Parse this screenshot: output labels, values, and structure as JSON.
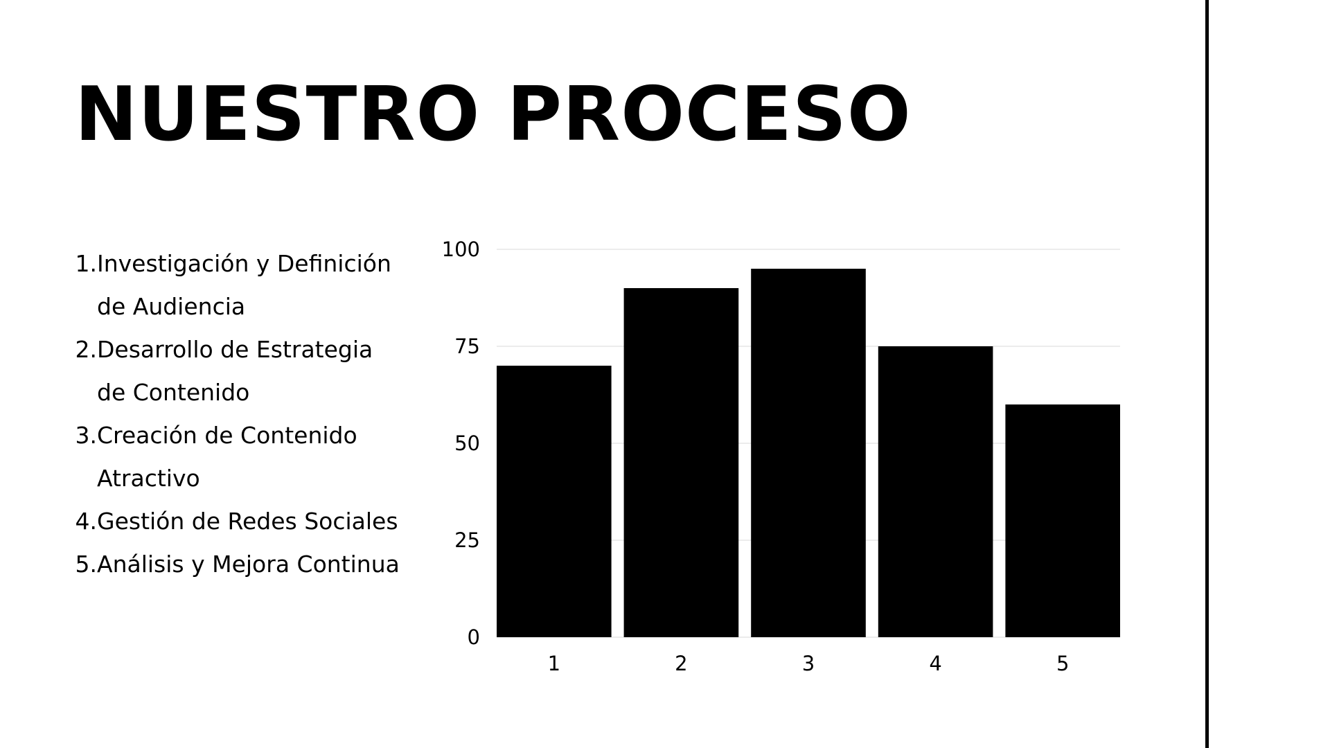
{
  "slide": {
    "title": "NUESTRO PROCESO",
    "steps": [
      {
        "num": "1.",
        "text": "Investigación y Definición de Audiencia"
      },
      {
        "num": "2.",
        "text": "Desarrollo de Estrategia de Contenido"
      },
      {
        "num": "3.",
        "text": "Creación de Contenido Atractivo"
      },
      {
        "num": "4.",
        "text": "Gestión de Redes Sociales"
      },
      {
        "num": "5.",
        "text": "Análisis y Mejora Continua"
      }
    ]
  },
  "colors": {
    "bar": "#000000",
    "gridline": "#e6e6e6",
    "text": "#000000",
    "background": "#ffffff"
  },
  "chart_data": {
    "type": "bar",
    "categories": [
      "1",
      "2",
      "3",
      "4",
      "5"
    ],
    "values": [
      70,
      90,
      95,
      75,
      60
    ],
    "ylim": [
      0,
      100
    ],
    "yticks": [
      0,
      25,
      50,
      75,
      100
    ],
    "grid": true,
    "title": "",
    "xlabel": "",
    "ylabel": ""
  }
}
